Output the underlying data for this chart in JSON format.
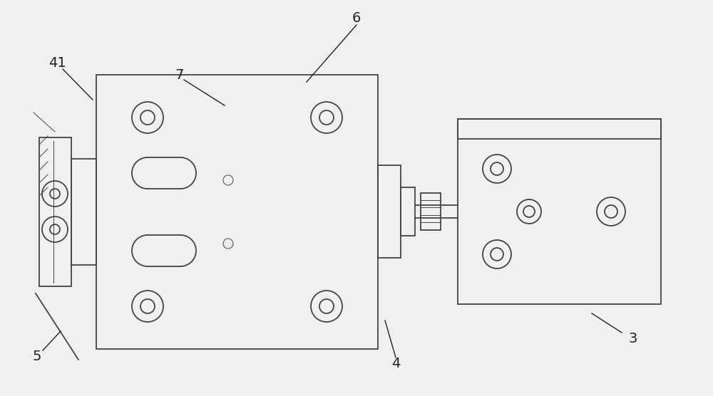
{
  "bg_color": "#f0f0f0",
  "line_color": "#444444",
  "lw": 1.3,
  "thin_lw": 0.7,
  "fig_w": 10.0,
  "fig_h": 5.56,
  "dpi": 100
}
